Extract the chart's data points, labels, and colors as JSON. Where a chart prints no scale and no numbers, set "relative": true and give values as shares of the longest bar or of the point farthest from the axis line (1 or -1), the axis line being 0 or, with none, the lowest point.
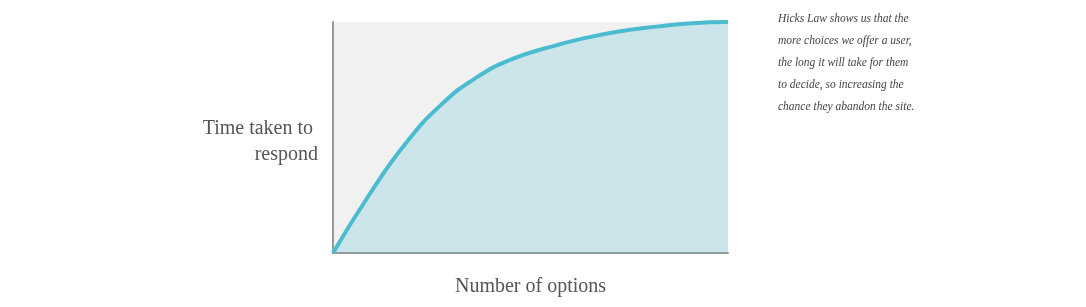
{
  "chart_data": {
    "type": "area",
    "relative": true,
    "xlabel": "Number of options",
    "ylabel": "Time taken to respond",
    "annotations": [
      "Hicks Law shows us that the more choices we offer a user, the long it will take for them to decide, so increasing the chance they abandon the site."
    ],
    "categories": [
      null,
      null,
      null,
      null,
      null,
      null,
      null,
      null,
      null,
      null,
      null,
      null
    ],
    "color": "#4bbcd0",
    "values": [
      0,
      0.25,
      0.47,
      0.64,
      0.76,
      0.84,
      0.89,
      0.93,
      0.96,
      0.98,
      0.995,
      1
    ]
  }
}
